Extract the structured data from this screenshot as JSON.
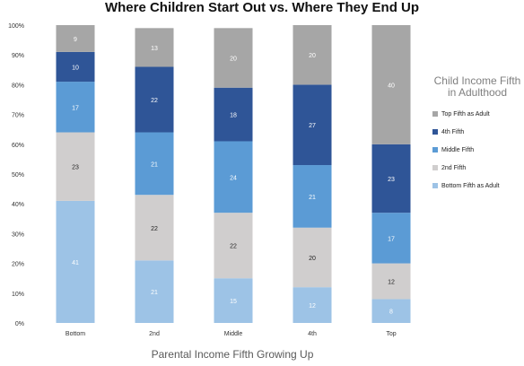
{
  "chart_data": {
    "type": "bar",
    "stacked": true,
    "title": "Where Children Start Out vs. Where They End Up",
    "xlabel": "Parental Income Fifth Growing Up",
    "ylabel": "",
    "ylim": [
      0,
      100
    ],
    "yticks": [
      "0%",
      "10%",
      "20%",
      "30%",
      "40%",
      "50%",
      "60%",
      "70%",
      "80%",
      "90%",
      "100%"
    ],
    "categories": [
      "Bottom",
      "2nd",
      "Middle",
      "4th",
      "Top"
    ],
    "series": [
      {
        "name": "Bottom Fifth as Adult",
        "color": "#9dc3e6",
        "values": [
          41,
          21,
          15,
          12,
          8
        ]
      },
      {
        "name": "2nd Fifth",
        "color": "#d0cece",
        "values": [
          23,
          22,
          22,
          20,
          12
        ]
      },
      {
        "name": "Middle Fifth",
        "color": "#5b9bd5",
        "values": [
          17,
          21,
          24,
          21,
          17
        ]
      },
      {
        "name": "4th Fifth",
        "color": "#2f5597",
        "values": [
          10,
          22,
          18,
          27,
          23
        ]
      },
      {
        "name": "Top Fifth as Adult",
        "color": "#a6a6a6",
        "values": [
          9,
          13,
          20,
          20,
          40
        ]
      }
    ],
    "legend": {
      "title": "Child Income Fifth in Adulthood",
      "position": "right",
      "order": [
        "Top Fifth as Adult",
        "4th Fifth",
        "Middle Fifth",
        "2nd Fifth",
        "Bottom Fifth as Adult"
      ]
    },
    "grid": false
  }
}
